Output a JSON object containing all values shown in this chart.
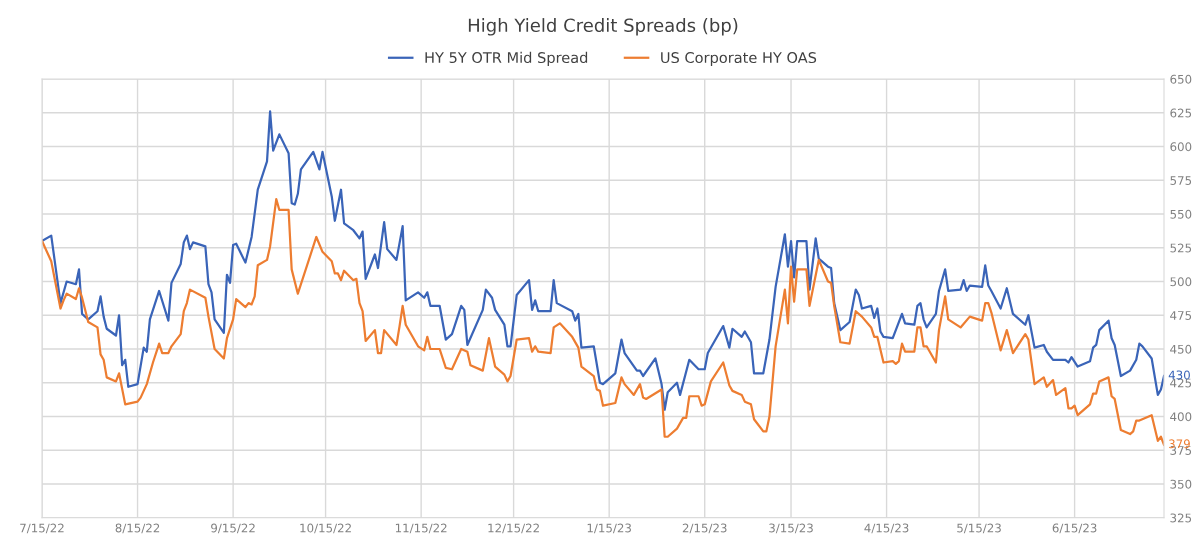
{
  "chart_data": {
    "type": "line",
    "title": "High Yield Credit Spreads (bp)",
    "legend": "top",
    "grid": true,
    "marker": "none",
    "line_style": "solid",
    "xlim": [
      "2022-07-15",
      "2023-07-14"
    ],
    "xticks": [
      {
        "value": "2022-07-15",
        "label": "7/15/22"
      },
      {
        "value": "2022-08-15",
        "label": "8/15/22"
      },
      {
        "value": "2022-09-15",
        "label": "9/15/22"
      },
      {
        "value": "2022-10-15",
        "label": "10/15/22"
      },
      {
        "value": "2022-11-15",
        "label": "11/15/22"
      },
      {
        "value": "2022-12-15",
        "label": "12/15/22"
      },
      {
        "value": "2023-01-15",
        "label": "1/15/23"
      },
      {
        "value": "2023-02-15",
        "label": "2/15/23"
      },
      {
        "value": "2023-03-15",
        "label": "3/15/23"
      },
      {
        "value": "2023-04-15",
        "label": "4/15/23"
      },
      {
        "value": "2023-05-15",
        "label": "5/15/23"
      },
      {
        "value": "2023-06-15",
        "label": "6/15/23"
      }
    ],
    "ylim": [
      325,
      650
    ],
    "yticks": [
      325,
      350,
      375,
      400,
      425,
      450,
      475,
      500,
      525,
      550,
      575,
      600,
      625,
      650
    ],
    "annotations": [
      {
        "text": "430",
        "x": "2023-07-14",
        "y": 430
      },
      {
        "text": "379",
        "x": "2023-07-14",
        "y": 379
      }
    ],
    "series": [
      {
        "name": "HY 5Y OTR Mid Spread",
        "color": "#3a64b8",
        "x": [
          "2022-07-15",
          "2022-07-18",
          "2022-07-21",
          "2022-07-23",
          "2022-07-26",
          "2022-07-27",
          "2022-07-28",
          "2022-07-30",
          "2022-08-02",
          "2022-08-03",
          "2022-08-04",
          "2022-08-05",
          "2022-08-08",
          "2022-08-09",
          "2022-08-10",
          "2022-08-11",
          "2022-08-12",
          "2022-08-15",
          "2022-08-17",
          "2022-08-18",
          "2022-08-19",
          "2022-08-22",
          "2022-08-25",
          "2022-08-26",
          "2022-08-29",
          "2022-08-30",
          "2022-08-31",
          "2022-09-01",
          "2022-09-02",
          "2022-09-06",
          "2022-09-07",
          "2022-09-08",
          "2022-09-09",
          "2022-09-12",
          "2022-09-13",
          "2022-09-14",
          "2022-09-15",
          "2022-09-16",
          "2022-09-19",
          "2022-09-21",
          "2022-09-23",
          "2022-09-26",
          "2022-09-27",
          "2022-09-28",
          "2022-09-30",
          "2022-10-03",
          "2022-10-04",
          "2022-10-05",
          "2022-10-06",
          "2022-10-07",
          "2022-10-11",
          "2022-10-13",
          "2022-10-14",
          "2022-10-17",
          "2022-10-18",
          "2022-10-20",
          "2022-10-21",
          "2022-10-24",
          "2022-10-26",
          "2022-10-27",
          "2022-10-28",
          "2022-10-31",
          "2022-11-01",
          "2022-11-03",
          "2022-11-04",
          "2022-11-07",
          "2022-11-09",
          "2022-11-10",
          "2022-11-14",
          "2022-11-16",
          "2022-11-17",
          "2022-11-18",
          "2022-11-21",
          "2022-11-23",
          "2022-11-25",
          "2022-11-28",
          "2022-11-29",
          "2022-11-30",
          "2022-12-05",
          "2022-12-06",
          "2022-12-08",
          "2022-12-09",
          "2022-12-12",
          "2022-12-13",
          "2022-12-14",
          "2022-12-16",
          "2022-12-20",
          "2022-12-21",
          "2022-12-22",
          "2022-12-23",
          "2022-12-27",
          "2022-12-28",
          "2022-12-29",
          "2023-01-03",
          "2023-01-04",
          "2023-01-05",
          "2023-01-06",
          "2023-01-10",
          "2023-01-12",
          "2023-01-13",
          "2023-01-17",
          "2023-01-19",
          "2023-01-20",
          "2023-01-24",
          "2023-01-25",
          "2023-01-26",
          "2023-01-30",
          "2023-02-01",
          "2023-02-02",
          "2023-02-03",
          "2023-02-06",
          "2023-02-07",
          "2023-02-10",
          "2023-02-13",
          "2023-02-15",
          "2023-02-16",
          "2023-02-21",
          "2023-02-23",
          "2023-02-24",
          "2023-02-27",
          "2023-02-28",
          "2023-03-02",
          "2023-03-03",
          "2023-03-06",
          "2023-03-08",
          "2023-03-10",
          "2023-03-13",
          "2023-03-14",
          "2023-03-15",
          "2023-03-16",
          "2023-03-17",
          "2023-03-20",
          "2023-03-21",
          "2023-03-23",
          "2023-03-24",
          "2023-03-27",
          "2023-03-28",
          "2023-03-29",
          "2023-03-31",
          "2023-04-03",
          "2023-04-05",
          "2023-04-06",
          "2023-04-07",
          "2023-04-10",
          "2023-04-11",
          "2023-04-12",
          "2023-04-13",
          "2023-04-14",
          "2023-04-17",
          "2023-04-20",
          "2023-04-21",
          "2023-04-24",
          "2023-04-25",
          "2023-04-26",
          "2023-04-27",
          "2023-04-28",
          "2023-05-01",
          "2023-05-02",
          "2023-05-04",
          "2023-05-05",
          "2023-05-09",
          "2023-05-10",
          "2023-05-11",
          "2023-05-12",
          "2023-05-16",
          "2023-05-17",
          "2023-05-18",
          "2023-05-19",
          "2023-05-22",
          "2023-05-24",
          "2023-05-26",
          "2023-05-30",
          "2023-05-31",
          "2023-06-02",
          "2023-06-05",
          "2023-06-06",
          "2023-06-08",
          "2023-06-12",
          "2023-06-13",
          "2023-06-14",
          "2023-06-16",
          "2023-06-20",
          "2023-06-21",
          "2023-06-22",
          "2023-06-23",
          "2023-06-26",
          "2023-06-27",
          "2023-06-28",
          "2023-06-30",
          "2023-07-03",
          "2023-07-05",
          "2023-07-06",
          "2023-07-07",
          "2023-07-10",
          "2023-07-12",
          "2023-07-13",
          "2023-07-14"
        ],
        "values": [
          530,
          534,
          484,
          500,
          498,
          509,
          476,
          472,
          478,
          489,
          474,
          465,
          460,
          475,
          438,
          442,
          422,
          424,
          451,
          448,
          472,
          493,
          471,
          499,
          513,
          529,
          534,
          524,
          529,
          526,
          498,
          492,
          472,
          462,
          505,
          499,
          527,
          528,
          514,
          533,
          568,
          589,
          626,
          597,
          609,
          595,
          558,
          557,
          565,
          583,
          596,
          583,
          596,
          563,
          545,
          568,
          543,
          538,
          532,
          537,
          502,
          520,
          510,
          544,
          524,
          516,
          541,
          486,
          492,
          488,
          492,
          482,
          482,
          457,
          461,
          482,
          479,
          453,
          479,
          494,
          488,
          479,
          468,
          452,
          452,
          490,
          501,
          479,
          486,
          478,
          478,
          501,
          484,
          478,
          471,
          476,
          451,
          452,
          425,
          424,
          432,
          457,
          447,
          434,
          434,
          430,
          443,
          424,
          405,
          418,
          425,
          416,
          442,
          435,
          435,
          447,
          467,
          451,
          465,
          459,
          463,
          455,
          432,
          432,
          457,
          496,
          535,
          511,
          530,
          503,
          530,
          530,
          494,
          532,
          517,
          511,
          510,
          484,
          464,
          470,
          494,
          490,
          480,
          482,
          473,
          480,
          463,
          459,
          458,
          476,
          469,
          468,
          482,
          484,
          472,
          466,
          476,
          493,
          509,
          493,
          494,
          501,
          493,
          497,
          496,
          512,
          497,
          493,
          480,
          495,
          476,
          468,
          475,
          451,
          453,
          448,
          442,
          442,
          440,
          444,
          437,
          441,
          451,
          453,
          464,
          471,
          458,
          453,
          430,
          434,
          442,
          454,
          452,
          443,
          416,
          420,
          430
        ]
      },
      {
        "name": "US Corporate HY OAS",
        "color": "#ed7d31",
        "x": [
          "2022-07-15",
          "2022-07-18",
          "2022-07-21",
          "2022-07-22",
          "2022-07-23",
          "2022-07-26",
          "2022-07-27",
          "2022-07-28",
          "2022-07-30",
          "2022-08-02",
          "2022-08-03",
          "2022-08-04",
          "2022-08-05",
          "2022-08-08",
          "2022-08-09",
          "2022-08-11",
          "2022-08-15",
          "2022-08-16",
          "2022-08-18",
          "2022-08-20",
          "2022-08-22",
          "2022-08-23",
          "2022-08-25",
          "2022-08-26",
          "2022-08-29",
          "2022-08-30",
          "2022-08-31",
          "2022-09-01",
          "2022-09-06",
          "2022-09-07",
          "2022-09-09",
          "2022-09-12",
          "2022-09-13",
          "2022-09-15",
          "2022-09-16",
          "2022-09-19",
          "2022-09-20",
          "2022-09-21",
          "2022-09-22",
          "2022-09-23",
          "2022-09-26",
          "2022-09-27",
          "2022-09-29",
          "2022-09-30",
          "2022-10-03",
          "2022-10-04",
          "2022-10-06",
          "2022-10-12",
          "2022-10-14",
          "2022-10-17",
          "2022-10-18",
          "2022-10-19",
          "2022-10-20",
          "2022-10-21",
          "2022-10-24",
          "2022-10-25",
          "2022-10-26",
          "2022-10-27",
          "2022-10-28",
          "2022-10-31",
          "2022-11-01",
          "2022-11-02",
          "2022-11-03",
          "2022-11-07",
          "2022-11-08",
          "2022-11-09",
          "2022-11-10",
          "2022-11-14",
          "2022-11-16",
          "2022-11-17",
          "2022-11-18",
          "2022-11-21",
          "2022-11-23",
          "2022-11-25",
          "2022-11-28",
          "2022-11-30",
          "2022-12-01",
          "2022-12-05",
          "2022-12-07",
          "2022-12-09",
          "2022-12-12",
          "2022-12-13",
          "2022-12-14",
          "2022-12-16",
          "2022-12-20",
          "2022-12-21",
          "2022-12-22",
          "2022-12-23",
          "2022-12-27",
          "2022-12-28",
          "2022-12-30",
          "2023-01-03",
          "2023-01-05",
          "2023-01-06",
          "2023-01-10",
          "2023-01-11",
          "2023-01-12",
          "2023-01-13",
          "2023-01-17",
          "2023-01-19",
          "2023-01-20",
          "2023-01-23",
          "2023-01-25",
          "2023-01-26",
          "2023-01-27",
          "2023-02-01",
          "2023-02-02",
          "2023-02-03",
          "2023-02-06",
          "2023-02-08",
          "2023-02-09",
          "2023-02-10",
          "2023-02-13",
          "2023-02-14",
          "2023-02-15",
          "2023-02-17",
          "2023-02-21",
          "2023-02-23",
          "2023-02-24",
          "2023-02-27",
          "2023-02-28",
          "2023-03-02",
          "2023-03-03",
          "2023-03-06",
          "2023-03-07",
          "2023-03-08",
          "2023-03-10",
          "2023-03-13",
          "2023-03-14",
          "2023-03-15",
          "2023-03-16",
          "2023-03-17",
          "2023-03-20",
          "2023-03-21",
          "2023-03-24",
          "2023-03-27",
          "2023-03-28",
          "2023-03-29",
          "2023-03-31",
          "2023-04-03",
          "2023-04-05",
          "2023-04-07",
          "2023-04-10",
          "2023-04-11",
          "2023-04-12",
          "2023-04-14",
          "2023-04-17",
          "2023-04-18",
          "2023-04-19",
          "2023-04-20",
          "2023-04-21",
          "2023-04-24",
          "2023-04-25",
          "2023-04-26",
          "2023-04-27",
          "2023-04-28",
          "2023-05-01",
          "2023-05-02",
          "2023-05-04",
          "2023-05-05",
          "2023-05-09",
          "2023-05-12",
          "2023-05-16",
          "2023-05-17",
          "2023-05-18",
          "2023-05-19",
          "2023-05-22",
          "2023-05-24",
          "2023-05-26",
          "2023-05-30",
          "2023-05-31",
          "2023-06-02",
          "2023-06-05",
          "2023-06-06",
          "2023-06-08",
          "2023-06-09",
          "2023-06-12",
          "2023-06-13",
          "2023-06-14",
          "2023-06-15",
          "2023-06-16",
          "2023-06-20",
          "2023-06-21",
          "2023-06-22",
          "2023-06-23",
          "2023-06-26",
          "2023-06-27",
          "2023-06-28",
          "2023-06-30",
          "2023-07-03",
          "2023-07-04",
          "2023-07-05",
          "2023-07-06",
          "2023-07-10",
          "2023-07-12",
          "2023-07-13",
          "2023-07-14"
        ],
        "values": [
          530,
          515,
          480,
          486,
          491,
          487,
          495,
          488,
          470,
          466,
          446,
          442,
          429,
          426,
          432,
          409,
          411,
          414,
          424,
          440,
          454,
          447,
          447,
          452,
          461,
          478,
          484,
          494,
          488,
          474,
          450,
          443,
          458,
          472,
          487,
          481,
          484,
          483,
          489,
          512,
          516,
          526,
          561,
          553,
          553,
          509,
          491,
          533,
          522,
          515,
          506,
          506,
          501,
          508,
          501,
          502,
          484,
          478,
          456,
          464,
          447,
          447,
          464,
          453,
          467,
          482,
          468,
          452,
          449,
          459,
          450,
          450,
          436,
          435,
          450,
          448,
          438,
          434,
          458,
          437,
          431,
          426,
          430,
          457,
          458,
          448,
          452,
          448,
          447,
          466,
          469,
          459,
          451,
          437,
          430,
          420,
          419,
          408,
          410,
          429,
          424,
          416,
          424,
          414,
          413,
          420,
          385,
          385,
          391,
          399,
          399,
          415,
          415,
          408,
          409,
          426,
          440,
          423,
          419,
          416,
          411,
          409,
          398,
          389,
          389,
          400,
          452,
          494,
          469,
          511,
          485,
          509,
          509,
          482,
          516,
          500,
          499,
          482,
          455,
          454,
          478,
          474,
          466,
          459,
          459,
          440,
          441,
          439,
          441,
          454,
          448,
          448,
          466,
          466,
          452,
          452,
          440,
          464,
          489,
          472,
          466,
          474,
          471,
          484,
          484,
          477,
          449,
          464,
          447,
          461,
          457,
          424,
          429,
          422,
          427,
          416,
          421,
          406,
          406,
          408,
          401,
          409,
          417,
          417,
          426,
          429,
          415,
          413,
          390,
          387,
          389,
          397,
          397,
          401,
          382,
          385,
          379
        ]
      }
    ]
  }
}
